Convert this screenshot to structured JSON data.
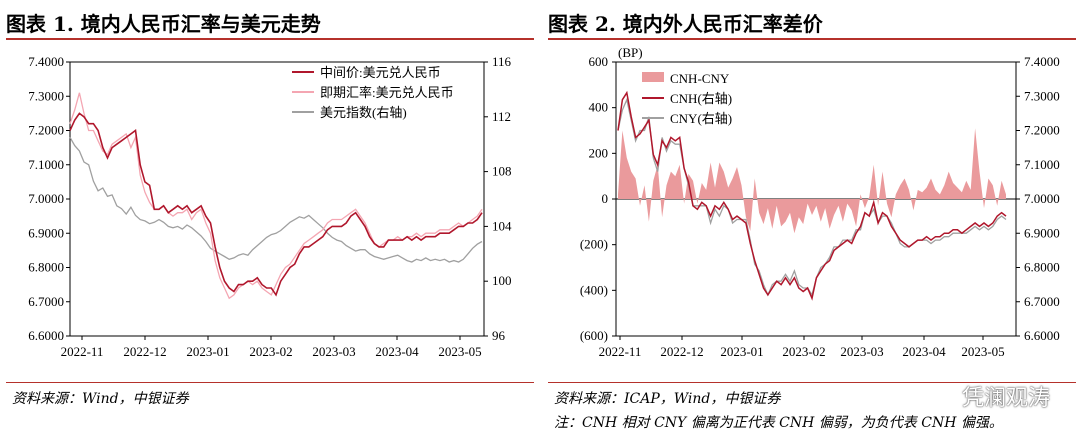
{
  "left_panel": {
    "title": "图表 1. 境内人民币汇率与美元走势",
    "source": "资料来源：Wind，中银证券"
  },
  "right_panel": {
    "title": "图表 2. 境内外人民币汇率差价",
    "source": "资料来源：ICAP，Wind，中银证券",
    "note": "注：CNH 相对 CNY 偏离为正代表 CNH 偏弱，为负代表 CNH 偏强。"
  },
  "watermark": "凭澜观涛",
  "colors": {
    "dark_red": "#b0172c",
    "pink": "#f4a6b2",
    "gray": "#a0a0a0",
    "fill_pink": "#ea9a9c",
    "rule": "#b5312b",
    "neg_red": "#e00000"
  },
  "chart_data": [
    {
      "type": "line",
      "x_tick_labels": [
        "2022-11",
        "2022-12",
        "2023-01",
        "2023-02",
        "2023-03",
        "2023-04",
        "2023-05"
      ],
      "y_left": {
        "range": [
          6.6,
          7.4
        ],
        "ticks": [
          "6.6000",
          "6.7000",
          "6.8000",
          "6.9000",
          "7.0000",
          "7.1000",
          "7.2000",
          "7.3000",
          "7.4000"
        ]
      },
      "y_right": {
        "range": [
          96,
          116
        ],
        "ticks": [
          "96",
          "100",
          "104",
          "108",
          "112",
          "116"
        ]
      },
      "legend_position": "top-right",
      "series": [
        {
          "name": "中间价:美元兑人民币",
          "color": "#b0172c",
          "axis": "left",
          "values": [
            7.2,
            7.23,
            7.25,
            7.24,
            7.22,
            7.22,
            7.2,
            7.15,
            7.12,
            7.15,
            7.16,
            7.17,
            7.18,
            7.19,
            7.2,
            7.1,
            7.05,
            7.04,
            6.97,
            6.97,
            6.98,
            6.96,
            6.97,
            6.98,
            6.97,
            6.98,
            6.96,
            6.97,
            6.98,
            6.95,
            6.93,
            6.86,
            6.8,
            6.76,
            6.74,
            6.73,
            6.75,
            6.75,
            6.76,
            6.76,
            6.77,
            6.75,
            6.74,
            6.74,
            6.72,
            6.76,
            6.78,
            6.8,
            6.81,
            6.84,
            6.86,
            6.86,
            6.87,
            6.88,
            6.89,
            6.91,
            6.92,
            6.92,
            6.92,
            6.93,
            6.95,
            6.96,
            6.94,
            6.92,
            6.89,
            6.87,
            6.86,
            6.86,
            6.88,
            6.88,
            6.88,
            6.88,
            6.89,
            6.88,
            6.89,
            6.88,
            6.89,
            6.89,
            6.89,
            6.9,
            6.9,
            6.9,
            6.91,
            6.92,
            6.92,
            6.93,
            6.93,
            6.94,
            6.96
          ]
        },
        {
          "name": "即期汇率:美元兑人民币",
          "color": "#f4a6b2",
          "axis": "left",
          "values": [
            7.22,
            7.26,
            7.31,
            7.25,
            7.2,
            7.2,
            7.17,
            7.14,
            7.13,
            7.16,
            7.17,
            7.18,
            7.19,
            7.15,
            7.18,
            7.07,
            7.02,
            6.99,
            6.97,
            6.97,
            6.98,
            6.96,
            6.95,
            6.96,
            6.96,
            6.97,
            6.94,
            6.96,
            6.97,
            6.93,
            6.9,
            6.82,
            6.77,
            6.74,
            6.71,
            6.72,
            6.74,
            6.75,
            6.76,
            6.75,
            6.76,
            6.74,
            6.73,
            6.72,
            6.75,
            6.78,
            6.8,
            6.81,
            6.83,
            6.85,
            6.87,
            6.88,
            6.89,
            6.9,
            6.91,
            6.93,
            6.94,
            6.94,
            6.94,
            6.95,
            6.96,
            6.97,
            6.95,
            6.93,
            6.9,
            6.87,
            6.86,
            6.87,
            6.88,
            6.88,
            6.89,
            6.88,
            6.89,
            6.89,
            6.9,
            6.89,
            6.9,
            6.9,
            6.9,
            6.91,
            6.91,
            6.91,
            6.92,
            6.93,
            6.92,
            6.93,
            6.94,
            6.95,
            6.97
          ]
        },
        {
          "name": "美元指数(右轴)",
          "color": "#a0a0a0",
          "axis": "right",
          "values": [
            110.5,
            109.9,
            109.5,
            108.7,
            108.5,
            107.3,
            106.6,
            106.8,
            106.2,
            106.3,
            105.5,
            105.3,
            104.9,
            105.4,
            104.8,
            104.5,
            104.4,
            104.2,
            104.3,
            104.5,
            104.3,
            104.0,
            103.9,
            104.0,
            103.8,
            104.1,
            103.9,
            103.6,
            103.3,
            102.9,
            102.4,
            102.2,
            102.0,
            101.8,
            101.6,
            101.7,
            101.9,
            102.0,
            101.9,
            102.3,
            102.6,
            102.9,
            103.2,
            103.4,
            103.5,
            103.7,
            104.0,
            104.3,
            104.5,
            104.7,
            104.6,
            104.8,
            104.5,
            104.2,
            103.9,
            103.5,
            103.2,
            103.0,
            102.9,
            102.6,
            102.4,
            102.2,
            102.3,
            102.3,
            102.0,
            101.8,
            101.7,
            101.6,
            101.7,
            101.8,
            101.9,
            101.7,
            101.5,
            101.4,
            101.6,
            101.5,
            101.7,
            101.5,
            101.6,
            101.5,
            101.6,
            101.4,
            101.5,
            101.4,
            101.6,
            102.0,
            102.4,
            102.7,
            102.9
          ]
        }
      ]
    },
    {
      "type": "area",
      "ylabel": "(BP)",
      "x_tick_labels": [
        "2022-11",
        "2022-12",
        "2023-01",
        "2023-02",
        "2023-03",
        "2023-04",
        "2023-05"
      ],
      "y_left": {
        "range": [
          -600,
          600
        ],
        "ticks": [
          "(600)",
          "(400)",
          "(200)",
          "0",
          "200",
          "400",
          "600"
        ]
      },
      "y_right": {
        "range": [
          6.6,
          7.4
        ],
        "ticks": [
          "6.6000",
          "6.7000",
          "6.8000",
          "6.9000",
          "7.0000",
          "7.1000",
          "7.2000",
          "7.3000",
          "7.4000"
        ]
      },
      "legend_position": "top-left",
      "series": [
        {
          "name": "CNH-CNY",
          "type": "area",
          "color": "#ea9a9c",
          "axis": "left",
          "values": [
            20,
            300,
            180,
            120,
            90,
            -30,
            60,
            -100,
            80,
            150,
            -80,
            60,
            120,
            100,
            150,
            -20,
            110,
            80,
            -20,
            70,
            40,
            160,
            50,
            160,
            120,
            50,
            90,
            140,
            60,
            -80,
            -140,
            90,
            -60,
            -110,
            -40,
            -130,
            -30,
            -120,
            -100,
            -60,
            -150,
            -80,
            -110,
            -20,
            -70,
            -30,
            -100,
            -40,
            -130,
            -70,
            -30,
            -100,
            -20,
            -50,
            -120,
            20,
            -40,
            10,
            150,
            -30,
            120,
            -20,
            -80,
            20,
            60,
            90,
            40,
            -50,
            40,
            30,
            50,
            90,
            40,
            20,
            60,
            120,
            70,
            50,
            30,
            80,
            40,
            310,
            120,
            -40,
            90,
            60,
            -30,
            80,
            20
          ]
        },
        {
          "name": "CNH(右轴)",
          "color": "#b0172c",
          "axis": "right",
          "values": [
            7.2,
            7.29,
            7.31,
            7.24,
            7.18,
            7.19,
            7.21,
            7.23,
            7.13,
            7.1,
            7.17,
            7.15,
            7.18,
            7.17,
            7.18,
            7.09,
            7.05,
            6.98,
            6.97,
            6.99,
            6.98,
            6.95,
            6.98,
            6.97,
            6.99,
            6.97,
            6.94,
            6.95,
            6.94,
            6.93,
            6.87,
            6.82,
            6.78,
            6.74,
            6.72,
            6.74,
            6.76,
            6.75,
            6.77,
            6.75,
            6.77,
            6.74,
            6.73,
            6.74,
            6.71,
            6.77,
            6.79,
            6.81,
            6.82,
            6.85,
            6.86,
            6.87,
            6.88,
            6.87,
            6.9,
            6.92,
            6.96,
            6.95,
            6.99,
            6.93,
            6.96,
            6.95,
            6.92,
            6.9,
            6.88,
            6.87,
            6.86,
            6.87,
            6.88,
            6.88,
            6.89,
            6.88,
            6.89,
            6.89,
            6.9,
            6.9,
            6.91,
            6.91,
            6.9,
            6.91,
            6.92,
            6.93,
            6.92,
            6.93,
            6.92,
            6.93,
            6.95,
            6.96,
            6.95
          ]
        },
        {
          "name": "CNY(右轴)",
          "color": "#a0a0a0",
          "axis": "right",
          "values": [
            7.2,
            7.26,
            7.29,
            7.23,
            7.17,
            7.2,
            7.2,
            7.24,
            7.12,
            7.08,
            7.18,
            7.14,
            7.17,
            7.16,
            7.16,
            7.09,
            7.04,
            6.98,
            6.98,
            6.98,
            6.98,
            6.93,
            6.97,
            6.95,
            6.98,
            6.97,
            6.93,
            6.94,
            6.94,
            6.94,
            6.88,
            6.81,
            6.79,
            6.75,
            6.72,
            6.75,
            6.76,
            6.76,
            6.78,
            6.76,
            6.79,
            6.75,
            6.74,
            6.74,
            6.72,
            6.77,
            6.8,
            6.81,
            6.83,
            6.86,
            6.86,
            6.88,
            6.88,
            6.88,
            6.91,
            6.91,
            6.96,
            6.95,
            6.97,
            6.93,
            6.95,
            6.95,
            6.93,
            6.9,
            6.87,
            6.86,
            6.86,
            6.87,
            6.88,
            6.88,
            6.88,
            6.87,
            6.88,
            6.88,
            6.89,
            6.89,
            6.9,
            6.9,
            6.9,
            6.9,
            6.91,
            6.92,
            6.91,
            6.92,
            6.91,
            6.92,
            6.94,
            6.95,
            6.94
          ]
        }
      ]
    }
  ]
}
